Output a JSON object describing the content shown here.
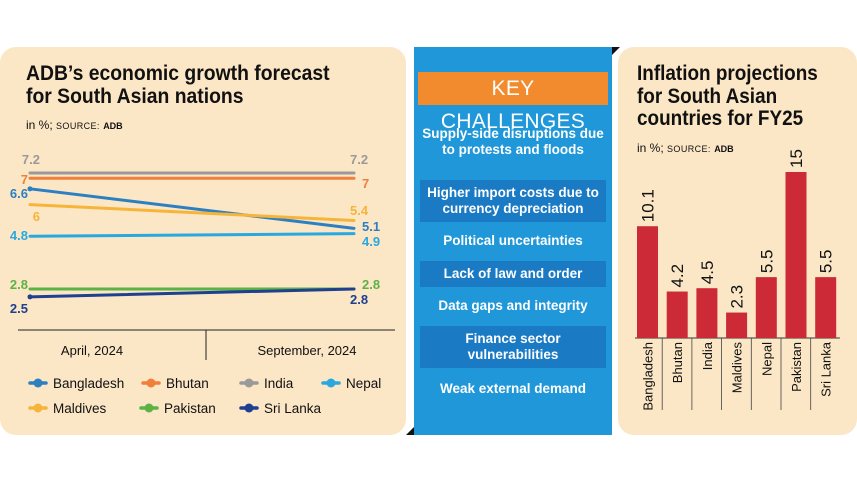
{
  "left_chart": {
    "title": "ADB’s economic growth forecast for South Asian nations",
    "unit": "in %;",
    "source_label": "SOURCE:",
    "source": "ADB"
  },
  "right_chart": {
    "title": "Inflation projections for South Asian countries for FY25",
    "unit": "in %;",
    "source_label": "SOURCE:",
    "source": "ADB"
  },
  "key_challenges": {
    "title": "KEY CHALLENGES",
    "items": [
      "Supply-side disruptions due to protests and floods",
      "Higher import costs due to currency depreciation",
      "Political uncertainties",
      "Lack of law and order",
      "Data gaps and integrity",
      "Finance sector vulnerabilities",
      "Weak external demand"
    ]
  },
  "chart_data": [
    {
      "type": "line",
      "title": "ADB’s economic growth forecast for South Asian nations",
      "ylabel": "in %",
      "x": [
        "April, 2024",
        "September, 2024"
      ],
      "series": [
        {
          "name": "Bangladesh",
          "values": [
            6.6,
            5.1
          ],
          "labels": [
            "6.6",
            "5.1"
          ],
          "color": "#2c7fc0"
        },
        {
          "name": "Bhutan",
          "values": [
            7.0,
            7.0
          ],
          "labels": [
            "7",
            "7"
          ],
          "color": "#f07f3c"
        },
        {
          "name": "India",
          "values": [
            7.2,
            7.2
          ],
          "labels": [
            "7.2",
            "7.2"
          ],
          "color": "#9a9a9a"
        },
        {
          "name": "Nepal",
          "values": [
            4.8,
            4.9
          ],
          "labels": [
            "4.8",
            "4.9"
          ],
          "color": "#29a8df"
        },
        {
          "name": "Maldives",
          "values": [
            6.0,
            5.4
          ],
          "labels": [
            "6",
            "5.4"
          ],
          "color": "#f6b43a"
        },
        {
          "name": "Pakistan",
          "values": [
            2.8,
            2.8
          ],
          "labels": [
            "2.8",
            "2.8"
          ],
          "color": "#5db246"
        },
        {
          "name": "Sri Lanka",
          "values": [
            2.5,
            2.8
          ],
          "labels": [
            "2.5",
            "2.8"
          ],
          "color": "#1f3f8f"
        }
      ]
    },
    {
      "type": "bar",
      "title": "Inflation projections for South Asian countries for FY25",
      "ylabel": "in %",
      "categories": [
        "Bangladesh",
        "Bhutan",
        "India",
        "Maldives",
        "Nepal",
        "Pakistan",
        "Sri Lanka"
      ],
      "values": [
        10.1,
        4.2,
        4.5,
        2.3,
        5.5,
        15,
        5.5
      ],
      "labels": [
        "10.1",
        "4.2",
        "4.5",
        "2.3",
        "5.5",
        "15",
        "5.5"
      ],
      "ylim": [
        0,
        15
      ],
      "color": "#cc2a36"
    }
  ]
}
